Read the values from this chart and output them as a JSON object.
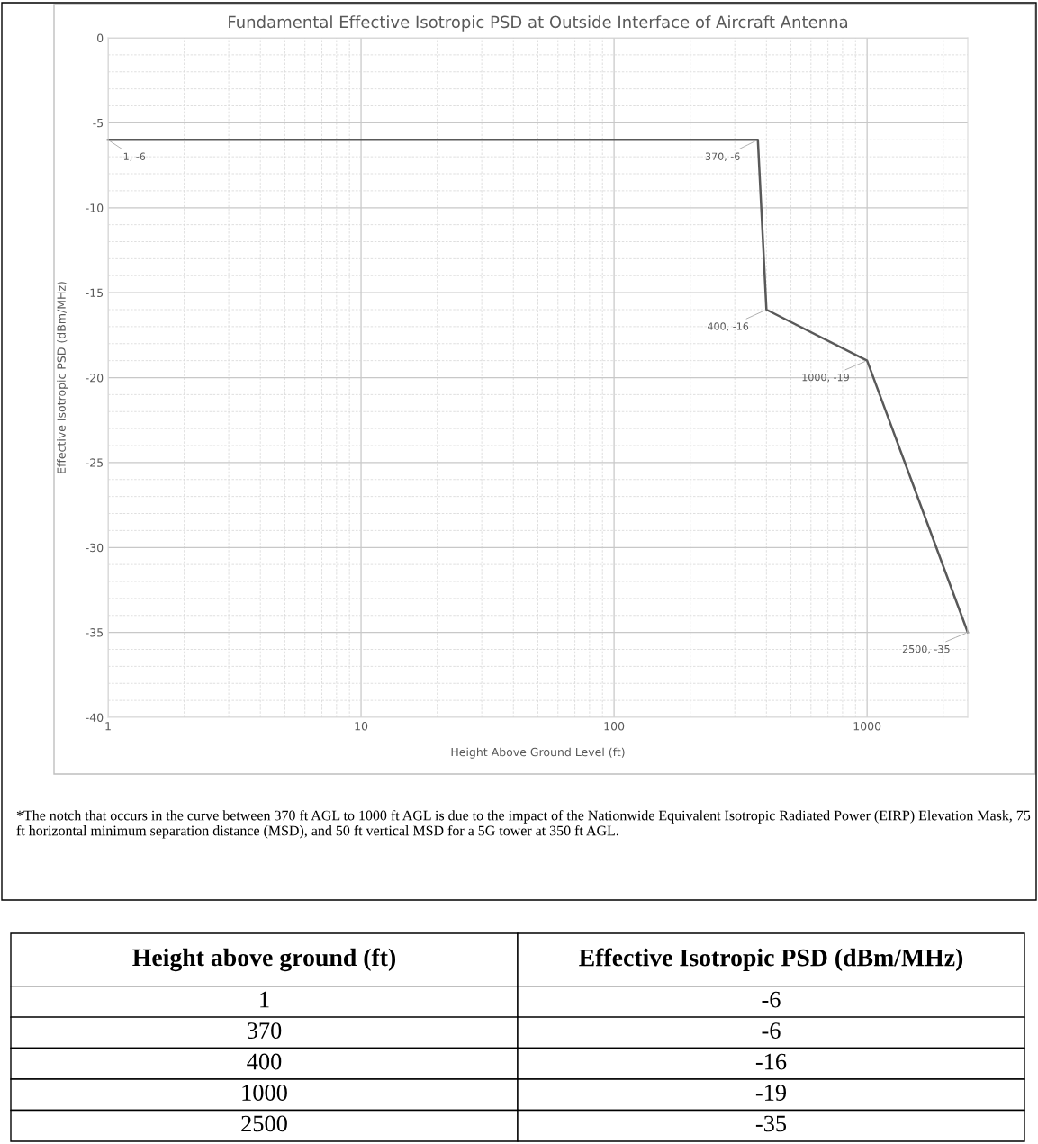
{
  "chart_data": {
    "type": "line",
    "title": "Fundamental Effective Isotropic PSD at Outside Interface of Aircraft Antenna",
    "xlabel": "Height Above Ground Level (ft)",
    "ylabel": "Effective Isotropic PSD (dBm/MHz)",
    "x": [
      1,
      370,
      400,
      1000,
      2500
    ],
    "series": [
      {
        "color": "#595959",
        "values": [
          -6,
          -6,
          -16,
          -19,
          -35
        ],
        "value_labels": [
          "1, -6",
          "370, -6",
          "400, -16",
          "1000, -19",
          "2500, -35"
        ]
      }
    ],
    "log": "x",
    "xlim": [
      1,
      2500
    ],
    "xticks": [
      1,
      10,
      100,
      1000
    ],
    "ylim": [
      -40,
      0
    ],
    "yticks": [
      -40,
      -35,
      -30,
      -25,
      -20,
      -15,
      -10,
      -5,
      0
    ],
    "grid": true,
    "annotations": [
      "*The notch that occurs in the curve between 370 ft AGL to 1000 ft AGL is due to the impact of the Nationwide Equivalent Isotropic Radiated Power (EIRP) Elevation Mask, 75 ft horizontal minimum separation distance (MSD), and 50 ft vertical MSD for a 5G tower at 350 ft AGL.",
      "Height above ground (ft)",
      "Effective Isotropic PSD (dBm/MHz)",
      "1",
      "-6",
      "370",
      "-6",
      "400",
      "-16",
      "1000",
      "-19",
      "2500",
      "-35"
    ]
  }
}
